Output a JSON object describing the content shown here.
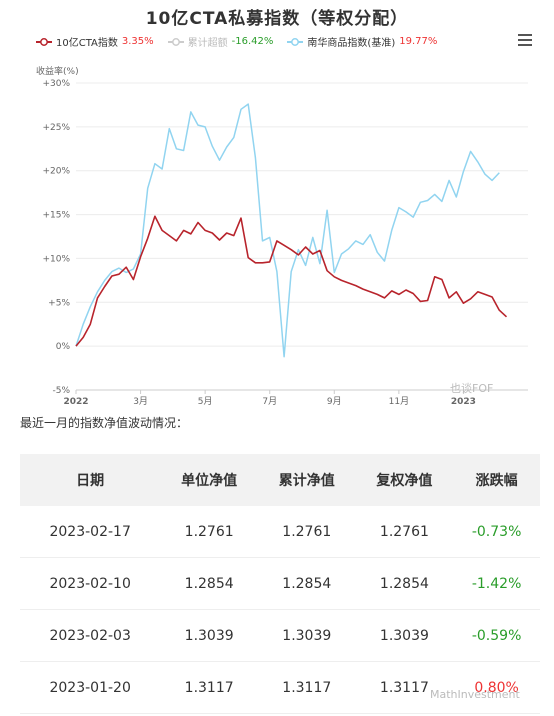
{
  "chart_data": {
    "type": "line",
    "title": "10亿CTA私募指数（等权分配）",
    "ylabel": "收益率(%)",
    "ylim": [
      -5,
      30
    ],
    "yticks": [
      "-5%",
      "0%",
      "+5%",
      "+10%",
      "+15%",
      "+20%",
      "+25%",
      "+30%"
    ],
    "xticks": [
      "2022",
      "3月",
      "5月",
      "7月",
      "9月",
      "11月",
      "2023"
    ],
    "xtick_positions": [
      0,
      9,
      18,
      27,
      36,
      45,
      54
    ],
    "x_count": 64,
    "grid": true,
    "legend_position": "top-left",
    "series": [
      {
        "name": "10亿CTA指数",
        "value_label": "3.35%",
        "color": "#b8242c",
        "visible": true,
        "values": [
          0,
          1,
          2.5,
          5.5,
          6.8,
          8,
          8.2,
          9,
          7.6,
          10.2,
          12.3,
          14.8,
          13.2,
          12.6,
          12.0,
          13.2,
          12.8,
          14.1,
          13.2,
          12.9,
          12.1,
          12.9,
          12.6,
          14.6,
          10.1,
          9.5,
          9.5,
          9.6,
          12.0,
          11.5,
          11.0,
          10.4,
          11.3,
          10.5,
          10.9,
          8.6,
          7.9,
          7.5,
          7.2,
          6.9,
          6.5,
          6.2,
          5.9,
          5.5,
          6.3,
          5.9,
          6.4,
          6.0,
          5.1,
          5.2,
          7.9,
          7.6,
          5.5,
          6.2,
          4.9,
          5.4,
          6.2,
          5.9,
          5.6,
          4.1,
          3.35
        ]
      },
      {
        "name": "累计超额",
        "value_label": "-16.42%",
        "color": "#cccccc",
        "visible": false,
        "values": []
      },
      {
        "name": "南华商品指数(基准)",
        "value_label": "19.77%",
        "color": "#91d4f0",
        "visible": true,
        "values": [
          0,
          2.5,
          4.5,
          6.2,
          7.5,
          8.5,
          8.9,
          8.4,
          8.8,
          10.5,
          18.0,
          20.8,
          20.2,
          24.8,
          22.5,
          22.3,
          26.7,
          25.2,
          25.0,
          22.8,
          21.2,
          22.7,
          23.8,
          27.0,
          27.6,
          21.5,
          12.0,
          12.4,
          8.5,
          -1.2,
          8.5,
          11.0,
          9.2,
          12.4,
          9.4,
          15.5,
          8.4,
          10.5,
          11.1,
          12.0,
          11.6,
          12.7,
          10.7,
          9.7,
          13.2,
          15.8,
          15.3,
          14.7,
          16.4,
          16.6,
          17.3,
          16.5,
          18.9,
          17.0,
          19.9,
          22.2,
          21.0,
          19.6,
          18.9,
          19.77
        ]
      }
    ]
  },
  "watermark_chart": "也谈FOF",
  "watermark_table": "MathInvestment",
  "subheading": "最近一月的指数净值波动情况：",
  "table": {
    "headers": [
      "日期",
      "单位净值",
      "累计净值",
      "复权净值",
      "涨跌幅"
    ],
    "rows": [
      {
        "date": "2023-02-17",
        "nav": "1.2761",
        "cum": "1.2761",
        "adj": "1.2761",
        "chg": "-0.73%",
        "dir": "neg"
      },
      {
        "date": "2023-02-10",
        "nav": "1.2854",
        "cum": "1.2854",
        "adj": "1.2854",
        "chg": "-1.42%",
        "dir": "neg"
      },
      {
        "date": "2023-02-03",
        "nav": "1.3039",
        "cum": "1.3039",
        "adj": "1.3039",
        "chg": "-0.59%",
        "dir": "neg"
      },
      {
        "date": "2023-01-20",
        "nav": "1.3117",
        "cum": "1.3117",
        "adj": "1.3117",
        "chg": "0.80%",
        "dir": "pos"
      }
    ]
  }
}
